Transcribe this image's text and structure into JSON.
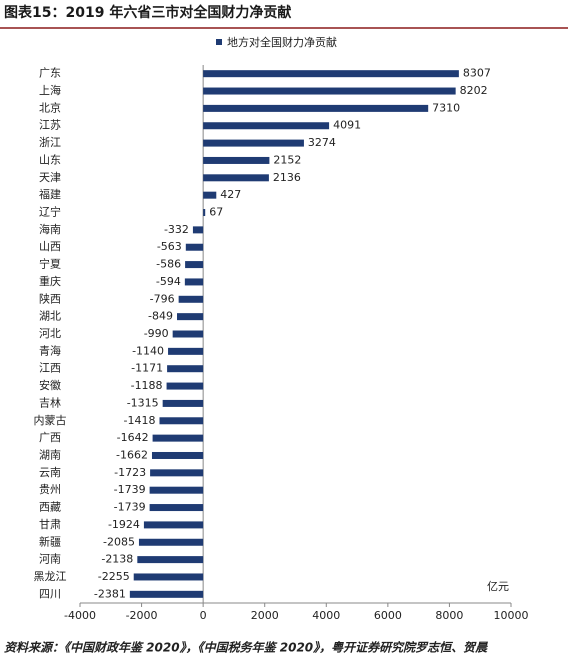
{
  "chart_data": {
    "type": "hbar",
    "title": "图表15：2019 年六省三市对全国财力净贡献",
    "categories": [
      "广东",
      "上海",
      "北京",
      "江苏",
      "浙江",
      "山东",
      "天津",
      "福建",
      "辽宁",
      "海南",
      "山西",
      "宁夏",
      "重庆",
      "陕西",
      "湖北",
      "河北",
      "青海",
      "江西",
      "安徽",
      "吉林",
      "内蒙古",
      "广西",
      "湖南",
      "云南",
      "贵州",
      "西藏",
      "甘肃",
      "新疆",
      "河南",
      "黑龙江",
      "四川"
    ],
    "series": [
      {
        "name": "地方对全国财力净贡献",
        "color": "#1f3b73",
        "values": [
          8307,
          8202,
          7310,
          4091,
          3274,
          2152,
          2136,
          427,
          67,
          -332,
          -563,
          -586,
          -594,
          -796,
          -849,
          -990,
          -1140,
          -1171,
          -1188,
          -1315,
          -1418,
          -1642,
          -1662,
          -1723,
          -1739,
          -1739,
          -1924,
          -2085,
          -2138,
          -2255,
          -2381
        ]
      }
    ],
    "xlim": [
      -4000,
      10000
    ],
    "xticks": [
      -4000,
      -2000,
      0,
      2000,
      4000,
      6000,
      8000,
      10000
    ],
    "x_unit": "亿元",
    "legend": "top",
    "source": "资料来源：《中国财政年鉴 2020》，《中国税务年鉴 2020》，粤开证券研究院罗志恒、贺晨"
  }
}
